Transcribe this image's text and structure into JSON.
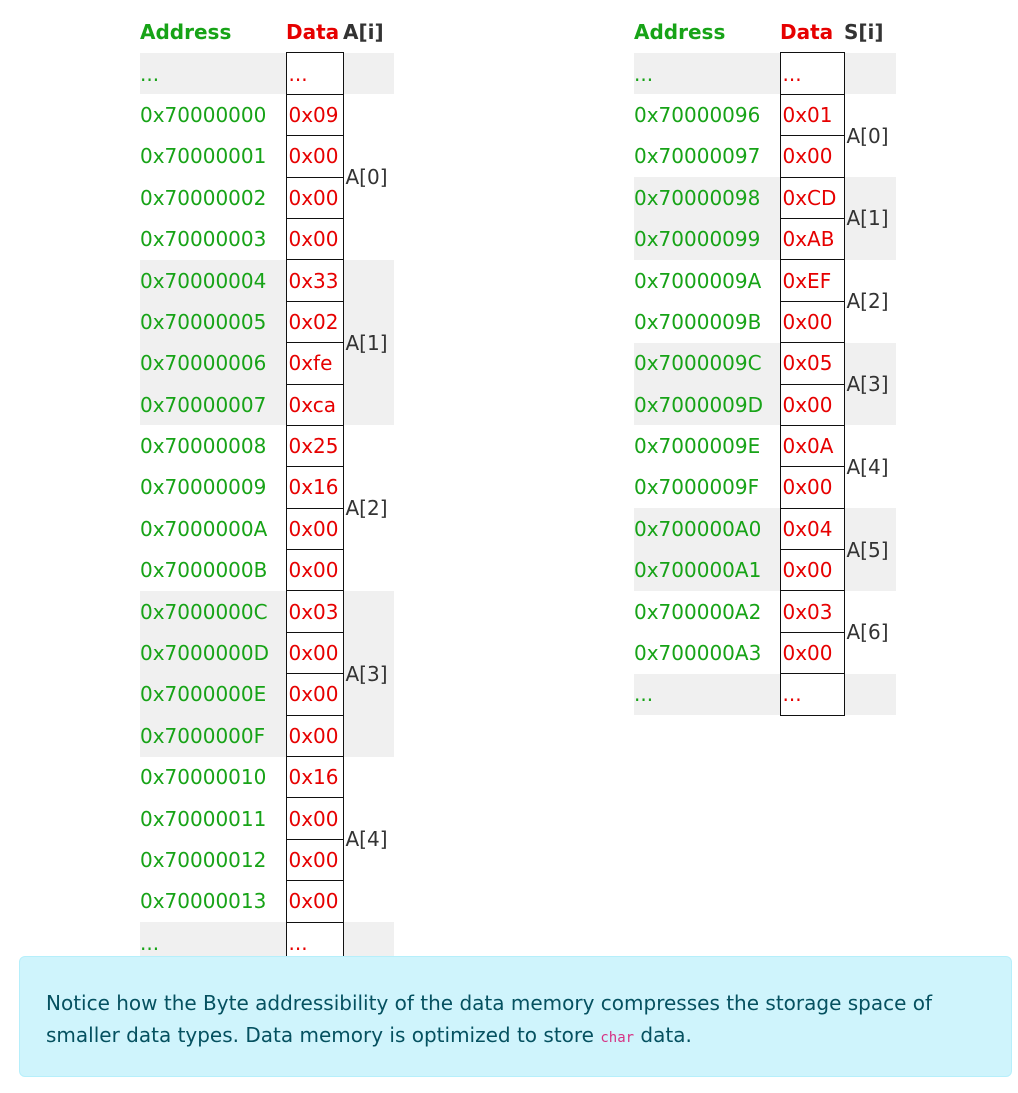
{
  "table_a": {
    "headers": {
      "address": "Address",
      "data": "Data",
      "index": "A[i]"
    },
    "rows": [
      {
        "address": "...",
        "data": "..."
      },
      {
        "address": "0x70000000",
        "data": "0x09",
        "group": "A[0]"
      },
      {
        "address": "0x70000001",
        "data": "0x00"
      },
      {
        "address": "0x70000002",
        "data": "0x00"
      },
      {
        "address": "0x70000003",
        "data": "0x00"
      },
      {
        "address": "0x70000004",
        "data": "0x33",
        "group": "A[1]"
      },
      {
        "address": "0x70000005",
        "data": "0x02"
      },
      {
        "address": "0x70000006",
        "data": "0xfe"
      },
      {
        "address": "0x70000007",
        "data": "0xca"
      },
      {
        "address": "0x70000008",
        "data": "0x25",
        "group": "A[2]"
      },
      {
        "address": "0x70000009",
        "data": "0x16"
      },
      {
        "address": "0x7000000A",
        "data": "0x00"
      },
      {
        "address": "0x7000000B",
        "data": "0x00"
      },
      {
        "address": "0x7000000C",
        "data": "0x03",
        "group": "A[3]"
      },
      {
        "address": "0x7000000D",
        "data": "0x00"
      },
      {
        "address": "0x7000000E",
        "data": "0x00"
      },
      {
        "address": "0x7000000F",
        "data": "0x00"
      },
      {
        "address": "0x70000010",
        "data": "0x16",
        "group": "A[4]"
      },
      {
        "address": "0x70000011",
        "data": "0x00"
      },
      {
        "address": "0x70000012",
        "data": "0x00"
      },
      {
        "address": "0x70000013",
        "data": "0x00"
      },
      {
        "address": "...",
        "data": "..."
      }
    ]
  },
  "table_s": {
    "headers": {
      "address": "Address",
      "data": "Data",
      "index": "S[i]"
    },
    "rows": [
      {
        "address": "...",
        "data": "..."
      },
      {
        "address": "0x70000096",
        "data": "0x01",
        "group": "A[0]"
      },
      {
        "address": "0x70000097",
        "data": "0x00"
      },
      {
        "address": "0x70000098",
        "data": "0xCD",
        "group": "A[1]"
      },
      {
        "address": "0x70000099",
        "data": "0xAB"
      },
      {
        "address": "0x7000009A",
        "data": "0xEF",
        "group": "A[2]"
      },
      {
        "address": "0x7000009B",
        "data": "0x00"
      },
      {
        "address": "0x7000009C",
        "data": "0x05",
        "group": "A[3]"
      },
      {
        "address": "0x7000009D",
        "data": "0x00"
      },
      {
        "address": "0x7000009E",
        "data": "0x0A",
        "group": "A[4]"
      },
      {
        "address": "0x7000009F",
        "data": "0x00"
      },
      {
        "address": "0x700000A0",
        "data": "0x04",
        "group": "A[5]"
      },
      {
        "address": "0x700000A1",
        "data": "0x00"
      },
      {
        "address": "0x700000A2",
        "data": "0x03",
        "group": "A[6]"
      },
      {
        "address": "0x700000A3",
        "data": "0x00"
      },
      {
        "address": "...",
        "data": "..."
      }
    ]
  },
  "note": {
    "text_before": "Notice how the Byte addressibility of the data memory compresses the storage space of smaller data types. Data memory is optimized to store ",
    "code": "char",
    "text_after": " data."
  },
  "colors": {
    "address": "#17a317",
    "data": "#e60000",
    "shade": "#f0f0f0",
    "note_bg": "#cff4fc",
    "note_text": "#055160",
    "code": "#d63384"
  }
}
